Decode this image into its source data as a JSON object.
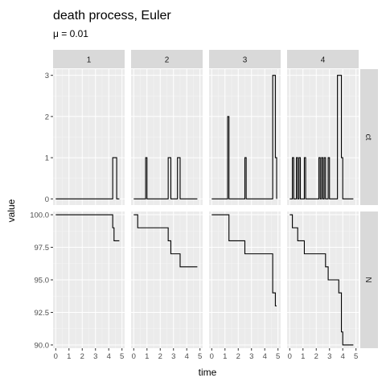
{
  "chart_data": {
    "type": "line",
    "step": true,
    "title": "death process, Euler",
    "subtitle": "μ = 0.01",
    "xlabel": "time",
    "ylabel": "value",
    "xlim": [
      -0.2,
      5.2
    ],
    "x_ticks": [
      0,
      1,
      2,
      3,
      4,
      5
    ],
    "x_tick_labels": [
      "0",
      "1",
      "2",
      "3",
      "4",
      "5"
    ],
    "panel_columns": [
      "1",
      "2",
      "3",
      "4"
    ],
    "panel_rows": [
      {
        "label": "ct",
        "ylim": [
          -0.15,
          3.15
        ],
        "y_ticks": [
          0,
          1,
          2,
          3
        ],
        "y_tick_labels": [
          "0",
          "1",
          "2",
          "3"
        ]
      },
      {
        "label": "N",
        "ylim": [
          89.75,
          100.25
        ],
        "y_ticks": [
          90,
          92.5,
          95,
          97.5,
          100
        ],
        "y_tick_labels": [
          "90.0",
          "92.5",
          "95.0",
          "97.5",
          "100.0"
        ]
      }
    ],
    "grid": true,
    "background": "#ebebeb",
    "strip_color": "#d9d9d9",
    "line_color": "#000000",
    "series": [
      {
        "column": "1",
        "row": "ct",
        "x": [
          0,
          4.3,
          4.6,
          4.8
        ],
        "y": [
          0,
          1,
          0,
          0
        ]
      },
      {
        "column": "1",
        "row": "N",
        "x": [
          0,
          4.3,
          4.4,
          4.8
        ],
        "y": [
          100,
          99,
          98,
          98
        ]
      },
      {
        "column": "2",
        "row": "ct",
        "x": [
          0,
          0.9,
          1.0,
          2.6,
          2.8,
          3.3,
          3.5,
          4.8
        ],
        "y": [
          0,
          1,
          0,
          1,
          0,
          1,
          0,
          0
        ]
      },
      {
        "column": "2",
        "row": "N",
        "x": [
          0,
          0.3,
          0.9,
          2.6,
          2.8,
          3.3,
          3.5,
          4.8
        ],
        "y": [
          100,
          99,
          99,
          98,
          97,
          97,
          96,
          96
        ]
      },
      {
        "column": "3",
        "row": "ct",
        "x": [
          0,
          1.2,
          1.3,
          2.5,
          2.6,
          4.6,
          4.8,
          4.9
        ],
        "y": [
          0,
          2,
          0,
          1,
          0,
          3,
          1,
          0
        ]
      },
      {
        "column": "3",
        "row": "N",
        "x": [
          0,
          0.5,
          1.3,
          2.5,
          4.6,
          4.8,
          4.9
        ],
        "y": [
          100,
          100,
          98,
          97,
          94,
          93,
          93
        ]
      },
      {
        "column": "4",
        "row": "ct",
        "x": [
          0,
          0.2,
          0.3,
          0.5,
          0.6,
          0.7,
          0.8,
          1.1,
          1.2,
          2.2,
          2.3,
          2.4,
          2.5,
          2.6,
          2.7,
          2.9,
          3.0,
          3.6,
          3.7,
          3.9,
          4.0,
          4.8
        ],
        "y": [
          0,
          1,
          0,
          1,
          0,
          1,
          0,
          1,
          0,
          1,
          0,
          1,
          0,
          1,
          0,
          1,
          0,
          3,
          3,
          1,
          0,
          0
        ]
      },
      {
        "column": "4",
        "row": "N",
        "x": [
          0,
          0.2,
          0.6,
          1.1,
          2.2,
          2.7,
          2.9,
          3.6,
          3.7,
          3.9,
          4.0,
          4.8
        ],
        "y": [
          100,
          99,
          98,
          97,
          97,
          96,
          95,
          95,
          94,
          91,
          90,
          90
        ]
      }
    ]
  }
}
